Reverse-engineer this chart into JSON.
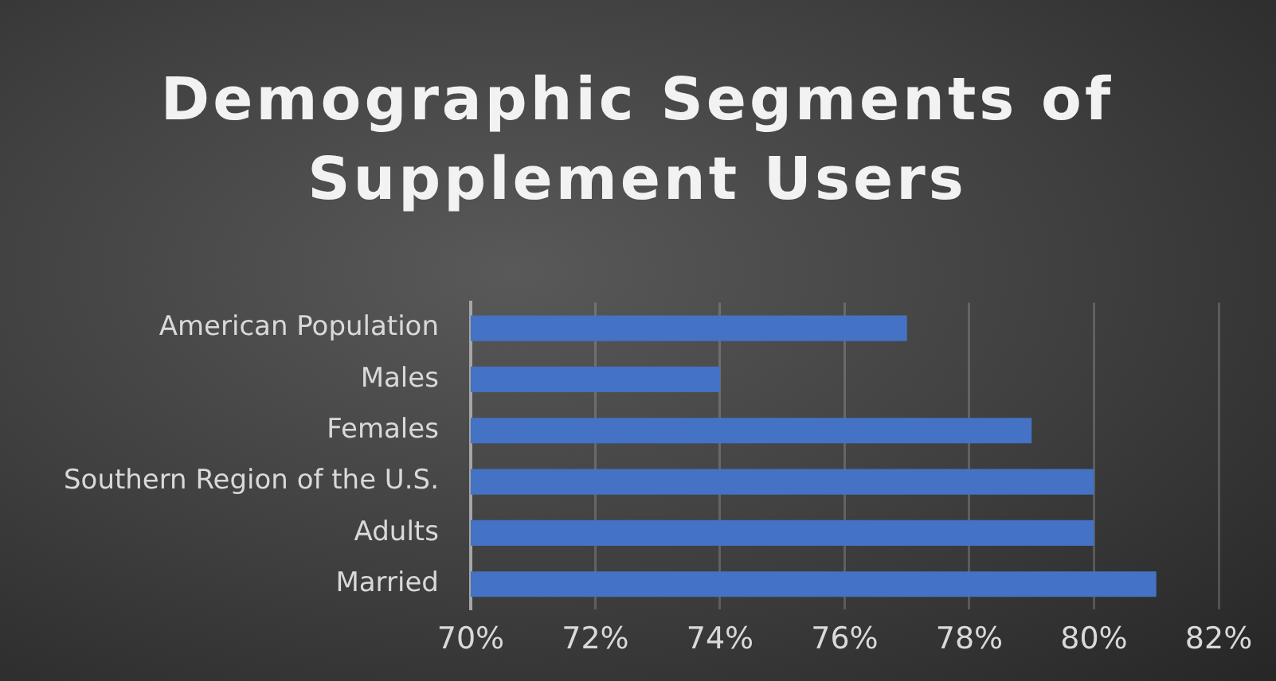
{
  "chart_data": {
    "type": "bar",
    "orientation": "horizontal",
    "title": "Demographic Segments of Supplement Users",
    "categories": [
      "American Population",
      "Males",
      "Females",
      "Southern Region of the U.S.",
      "Adults",
      "Married"
    ],
    "values": [
      77,
      74,
      79,
      80,
      80,
      81
    ],
    "color": "#4472c4",
    "xlim": [
      70,
      82
    ],
    "xticks": [
      {
        "value": 70,
        "label": "70%"
      },
      {
        "value": 72,
        "label": "72%"
      },
      {
        "value": 74,
        "label": "74%"
      },
      {
        "value": 76,
        "label": "76%"
      },
      {
        "value": 78,
        "label": "78%"
      },
      {
        "value": 80,
        "label": "80%"
      },
      {
        "value": 82,
        "label": "82%"
      }
    ],
    "grid": "x"
  }
}
